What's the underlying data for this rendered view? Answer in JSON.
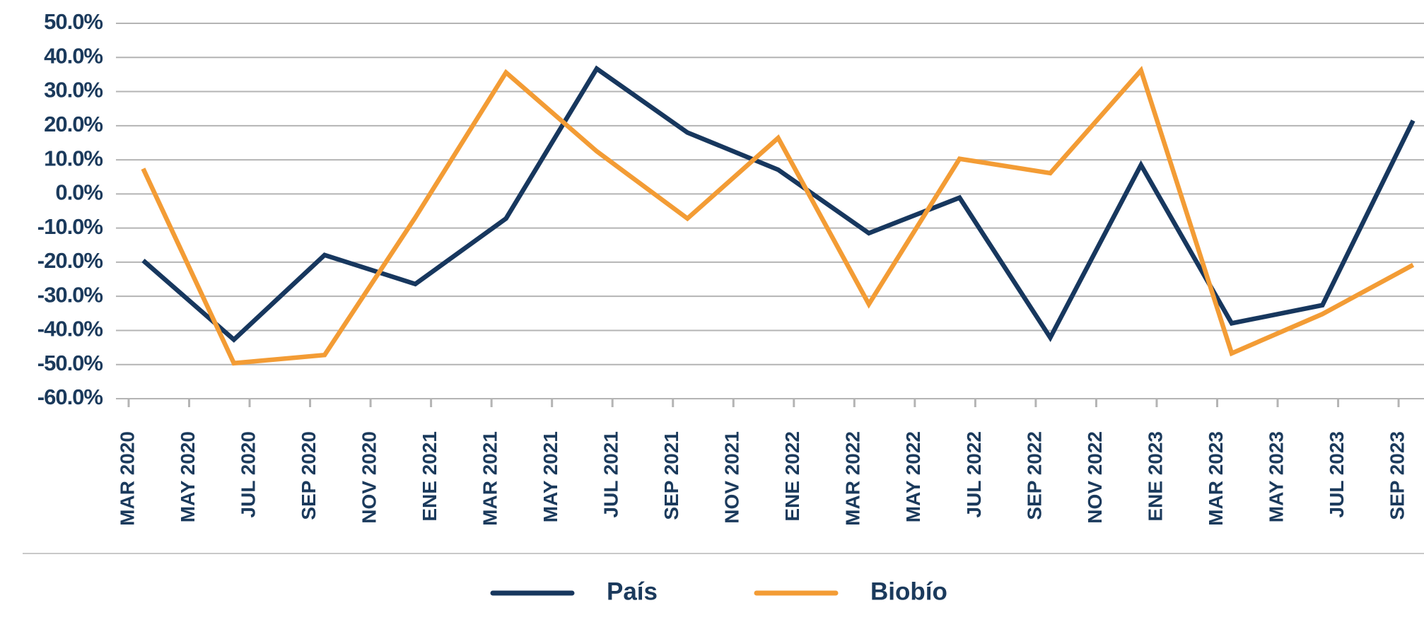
{
  "chart_data": {
    "type": "line",
    "x": [
      0.24,
      1.74,
      3.24,
      4.74,
      6.24,
      7.74,
      9.24,
      10.74,
      12.24,
      13.74,
      15.24,
      16.74,
      18.24,
      19.74,
      21.24
    ],
    "xlim": [
      -0.21,
      21.42
    ],
    "xticks": [
      {
        "value": 0,
        "label": "MAR 2020"
      },
      {
        "value": 1,
        "label": "MAY 2020"
      },
      {
        "value": 2,
        "label": "JUL 2020"
      },
      {
        "value": 3,
        "label": "SEP 2020"
      },
      {
        "value": 4,
        "label": "NOV 2020"
      },
      {
        "value": 5,
        "label": "ENE 2021"
      },
      {
        "value": 6,
        "label": "MAR 2021"
      },
      {
        "value": 7,
        "label": "MAY 2021"
      },
      {
        "value": 8,
        "label": "JUL 2021"
      },
      {
        "value": 9,
        "label": "SEP 2021"
      },
      {
        "value": 10,
        "label": "NOV 2021"
      },
      {
        "value": 11,
        "label": "ENE 2022"
      },
      {
        "value": 12,
        "label": "MAR 2022"
      },
      {
        "value": 13,
        "label": "MAY 2022"
      },
      {
        "value": 14,
        "label": "JUL 2022"
      },
      {
        "value": 15,
        "label": "SEP 2022"
      },
      {
        "value": 16,
        "label": "NOV 2022"
      },
      {
        "value": 17,
        "label": "ENE 2023"
      },
      {
        "value": 18,
        "label": "MAR 2023"
      },
      {
        "value": 19,
        "label": "MAY 2023"
      },
      {
        "value": 20,
        "label": "JUL 2023"
      },
      {
        "value": 21,
        "label": "SEP 2023"
      }
    ],
    "ylim": [
      -60,
      50
    ],
    "yticks": [
      {
        "value": 50,
        "label": "50.0%"
      },
      {
        "value": 40,
        "label": "40.0%"
      },
      {
        "value": 30,
        "label": "30.0%"
      },
      {
        "value": 20,
        "label": "20.0%"
      },
      {
        "value": 10,
        "label": "10.0%"
      },
      {
        "value": 0,
        "label": "0.0%"
      },
      {
        "value": -10,
        "label": "-10.0%"
      },
      {
        "value": -20,
        "label": "-20.0%"
      },
      {
        "value": -30,
        "label": "-30.0%"
      },
      {
        "value": -40,
        "label": "-40.0%"
      },
      {
        "value": -50,
        "label": "-50.0%"
      },
      {
        "value": -60,
        "label": "-60.0%"
      }
    ],
    "grid": true,
    "series": [
      {
        "name": "País",
        "color": "#17375e",
        "values": [
          -19.5,
          -42.7,
          -17.9,
          -26.4,
          -7.2,
          36.7,
          18.0,
          7.1,
          -11.5,
          -1.1,
          -42.1,
          8.5,
          -37.9,
          -32.6,
          21.5
        ]
      },
      {
        "name": "Biobío",
        "color": "#f39c35",
        "values": [
          7.4,
          -49.6,
          -47.2,
          -6.9,
          35.6,
          12.5,
          -7.2,
          16.4,
          -32.3,
          10.3,
          6.1,
          36.2,
          -46.7,
          -35.2,
          -20.8
        ]
      }
    ]
  }
}
